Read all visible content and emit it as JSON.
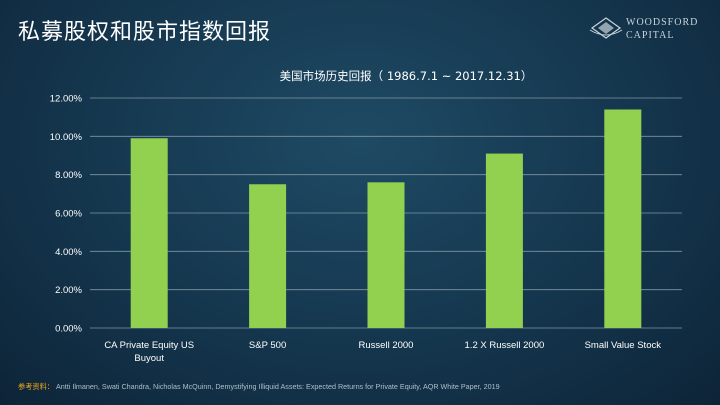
{
  "page": {
    "title": "私募股权和股市指数回报",
    "logo": {
      "line1": "WOODSFORD",
      "line2": "CAPITAL"
    },
    "source_label": "参考资料：",
    "source_text": "Antti Ilmanen,  Swati Chandra, Nicholas McQuinn, Demystifying Illiquid Assets: Expected  Returns for Private Equity, AQR White Paper, 2019"
  },
  "colors": {
    "bar": "#92d050",
    "grid": "#7f95a3",
    "text": "#ffffff",
    "accent": "#f0a81c"
  },
  "chart_data": {
    "type": "bar",
    "title": "美国市场历史回报（ 1986.7.1  ~ 2017.12.31）",
    "categories": [
      "CA Private Equity US Buyout",
      "S&P 500",
      "Russell 2000",
      "1.2 X Russell 2000",
      "Small Value Stock"
    ],
    "category_lines": [
      [
        "CA Private Equity US",
        "Buyout"
      ],
      [
        "S&P 500"
      ],
      [
        "Russell 2000"
      ],
      [
        "1.2 X Russell 2000"
      ],
      [
        "Small Value Stock"
      ]
    ],
    "values": [
      9.9,
      7.5,
      7.6,
      9.1,
      11.4
    ],
    "ylim": [
      0,
      12
    ],
    "yticks": [
      "0.00%",
      "2.00%",
      "4.00%",
      "6.00%",
      "8.00%",
      "10.00%",
      "12.00%"
    ],
    "grid": true,
    "legend": "none"
  }
}
